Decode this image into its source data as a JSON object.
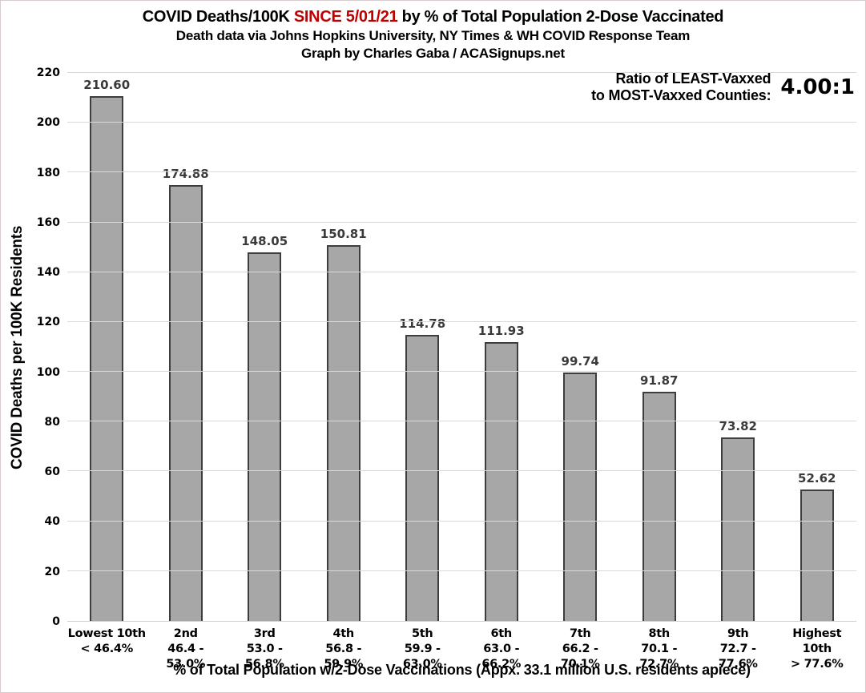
{
  "header": {
    "title_prefix": "COVID Deaths/100K ",
    "title_highlight": "SINCE 5/01/21",
    "title_suffix": " by % of Total Population 2-Dose Vaccinated",
    "highlight_color": "#c00000",
    "subtitle1": "Death data via Johns Hopkins University, NY Times & WH COVID Response Team",
    "subtitle2": "Graph by Charles Gaba / ACASignups.net"
  },
  "annotation": {
    "label_line1": "Ratio of LEAST-Vaxxed",
    "label_line2": "to MOST-Vaxxed Counties:",
    "value": "4.00:1"
  },
  "chart_data": {
    "type": "bar",
    "title": "COVID Deaths/100K SINCE 5/01/21 by % of Total Population 2-Dose Vaccinated",
    "categories": [
      {
        "line1": "Lowest 10th",
        "line2": "< 46.4%"
      },
      {
        "line1": "2nd",
        "line2": "46.4 - 53.0%"
      },
      {
        "line1": "3rd",
        "line2": "53.0 - 56.8%"
      },
      {
        "line1": "4th",
        "line2": "56.8 - 59.9%"
      },
      {
        "line1": "5th",
        "line2": "59.9 - 63.0%"
      },
      {
        "line1": "6th",
        "line2": "63.0 - 66.2%"
      },
      {
        "line1": "7th",
        "line2": "66.2 - 70.1%"
      },
      {
        "line1": "8th",
        "line2": "70.1 - 72.7%"
      },
      {
        "line1": "9th",
        "line2": "72.7 - 77.6%"
      },
      {
        "line1": "Highest 10th",
        "line2": "> 77.6%"
      }
    ],
    "values": [
      210.6,
      174.88,
      148.05,
      150.81,
      114.78,
      111.93,
      99.74,
      91.87,
      73.82,
      52.62
    ],
    "value_labels": [
      "210.60",
      "174.88",
      "148.05",
      "150.81",
      "114.78",
      "111.93",
      "99.74",
      "91.87",
      "73.82",
      "52.62"
    ],
    "xlabel": "% of Total Population w/2-Dose Vaccinations (Appx. 33.1 million U.S. residents apiece)",
    "ylabel": "COVID Deaths per 100K Residents",
    "ylim": [
      0,
      220
    ],
    "yticks": [
      0,
      20,
      40,
      60,
      80,
      100,
      120,
      140,
      160,
      180,
      200,
      220
    ],
    "grid": true,
    "legend": "none",
    "bar_color": "#a7a7a7",
    "bar_border_color": "#3d3d3d",
    "gridline_color": "#d9d9d9"
  }
}
